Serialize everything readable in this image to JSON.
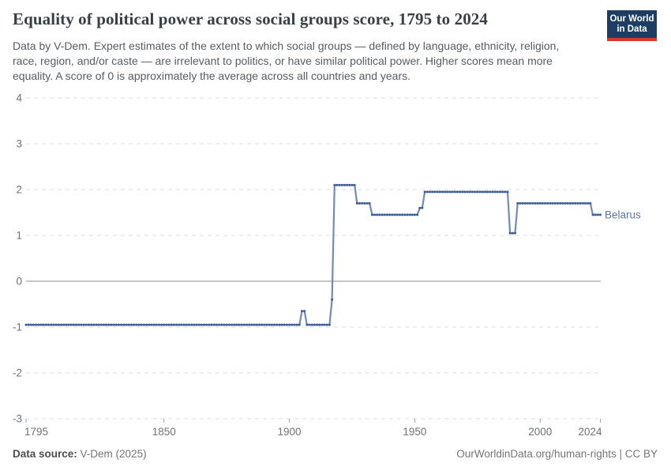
{
  "header": {
    "title": "Equality of political power across social groups score, 1795 to 2024",
    "subtitle_lines": [
      "Data by V-Dem. Expert estimates of the extent to which social groups — defined by language, ethnicity, religion,",
      "race, region, and/or caste — are irrelevant to politics, or have similar political power. Higher scores mean more",
      "equality. A score of 0 is approximately the average across all countries and years."
    ],
    "logo_line1": "Our World",
    "logo_line2": "in Data",
    "logo_bg": "#1d3d63",
    "logo_bar": "#d7382f"
  },
  "chart_data": {
    "type": "line",
    "title": "Equality of political power across social groups score, 1795 to 2024",
    "xlabel": "",
    "ylabel": "",
    "xlim": [
      1795,
      2024
    ],
    "ylim": [
      -3,
      4
    ],
    "x_ticks": [
      1795,
      1850,
      1900,
      1950,
      2000,
      2024
    ],
    "y_ticks": [
      4,
      3,
      2,
      1,
      0,
      -1,
      -2,
      -3
    ],
    "grid": "dashed-horizontal",
    "zero_line": true,
    "legend_position": "end-of-line-label",
    "series": [
      {
        "name": "Belarus",
        "color": "#4a69a2",
        "segments": [
          {
            "from": 1795,
            "to": 1904,
            "value": -0.95
          },
          {
            "from": 1905,
            "to": 1906,
            "value": -0.65
          },
          {
            "from": 1907,
            "to": 1916,
            "value": -0.95
          },
          {
            "from": 1917,
            "to": 1917,
            "value": -0.4
          },
          {
            "from": 1918,
            "to": 1926,
            "value": 2.1
          },
          {
            "from": 1927,
            "to": 1932,
            "value": 1.7
          },
          {
            "from": 1933,
            "to": 1951,
            "value": 1.45
          },
          {
            "from": 1952,
            "to": 1953,
            "value": 1.6
          },
          {
            "from": 1954,
            "to": 1987,
            "value": 1.95
          },
          {
            "from": 1988,
            "to": 1990,
            "value": 1.05
          },
          {
            "from": 1991,
            "to": 2020,
            "value": 1.7
          },
          {
            "from": 2021,
            "to": 2024,
            "value": 1.45
          }
        ]
      }
    ],
    "colors": {
      "line": "#728bb8",
      "marker": "#3e5c98",
      "label": "#5b74ad",
      "grid": "#dcdcdc",
      "zero_line": "#8d8d8d",
      "tick_text": "#6e7377",
      "tick_mark": "#a3a3a3"
    },
    "end_label": "Belarus"
  },
  "footer": {
    "source_label": "Data source:",
    "source_value": "V-Dem (2025)",
    "license": "OurWorldinData.org/human-rights | CC BY"
  }
}
